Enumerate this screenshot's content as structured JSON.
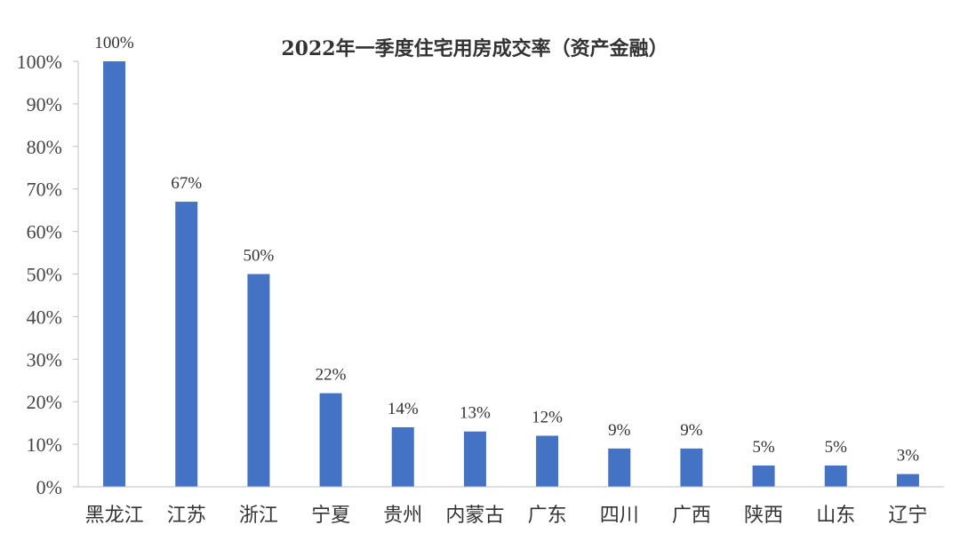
{
  "chart_data": {
    "type": "bar",
    "title": "2022年一季度住宅用房成交率（资产金融）",
    "xlabel": "",
    "ylabel": "",
    "ylim": [
      0,
      100
    ],
    "y_ticks": [
      "0%",
      "10%",
      "20%",
      "30%",
      "40%",
      "50%",
      "60%",
      "70%",
      "80%",
      "90%",
      "100%"
    ],
    "categories": [
      "黑龙江",
      "江苏",
      "浙江",
      "宁夏",
      "贵州",
      "内蒙古",
      "广东",
      "四川",
      "广西",
      "陕西",
      "山东",
      "辽宁"
    ],
    "values": [
      100,
      67,
      50,
      22,
      14,
      13,
      12,
      9,
      9,
      5,
      5,
      3
    ],
    "data_labels": [
      "100%",
      "67%",
      "50%",
      "22%",
      "14%",
      "13%",
      "12%",
      "9%",
      "9%",
      "5%",
      "5%",
      "3%"
    ],
    "bar_color": "#4472C4",
    "grid": false,
    "legend": "none"
  }
}
